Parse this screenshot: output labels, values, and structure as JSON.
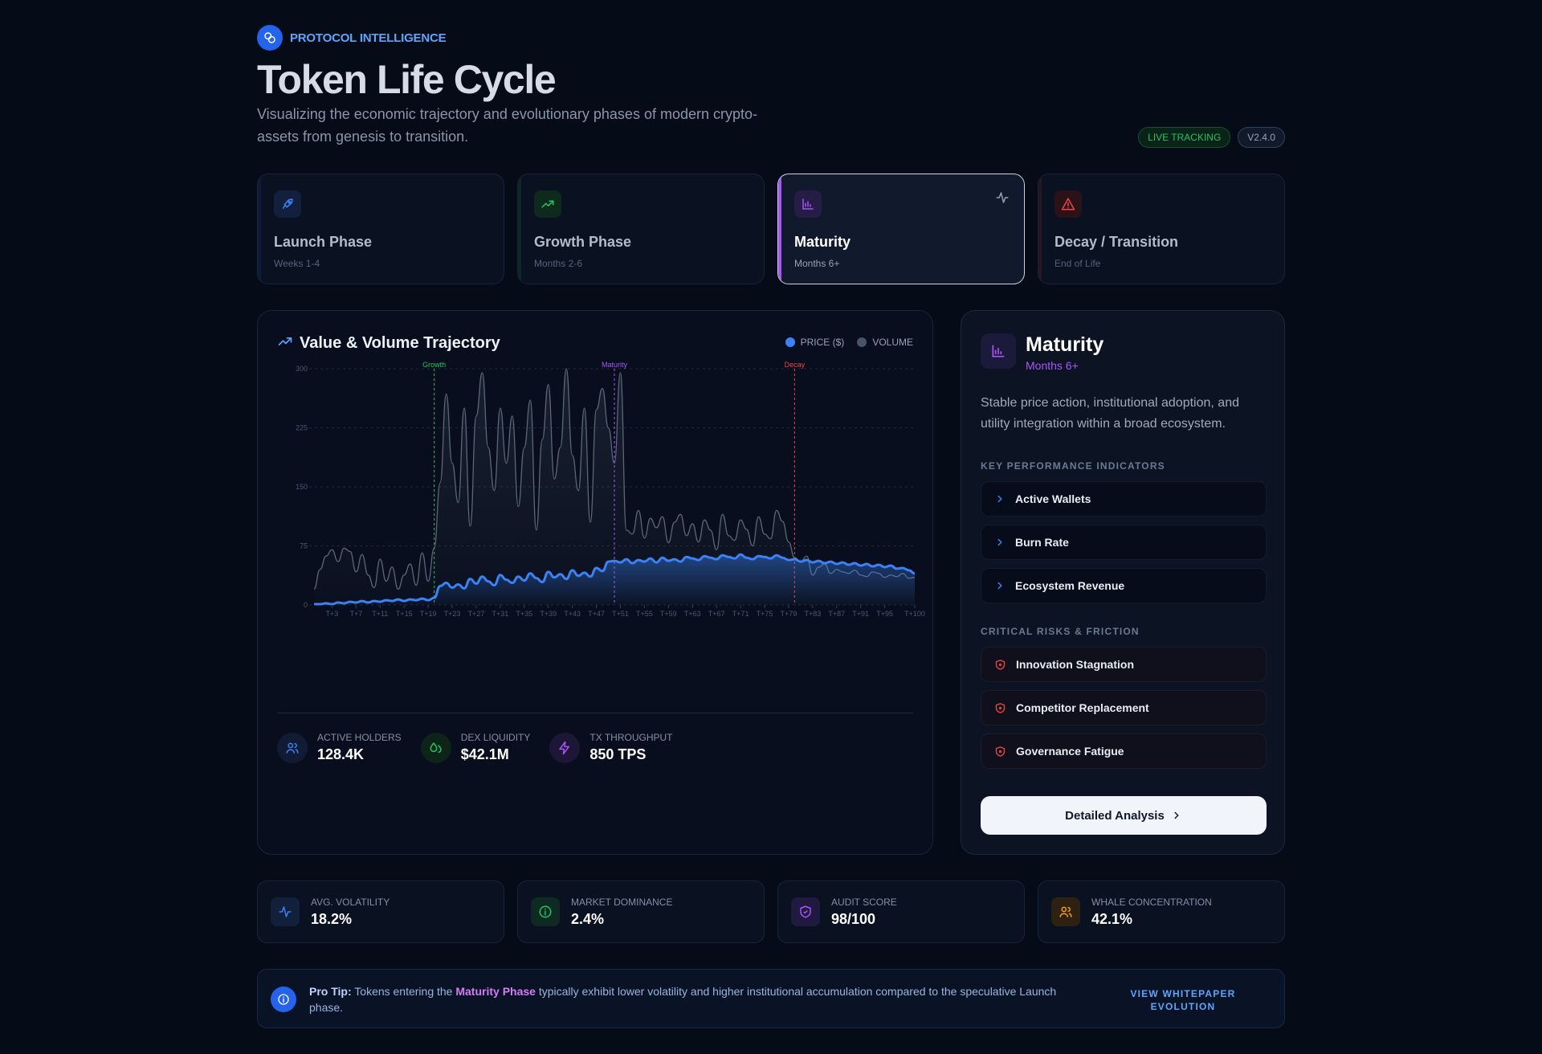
{
  "header": {
    "brand": "PROTOCOL INTELLIGENCE",
    "title": "Token Life Cycle",
    "subtitle": "Visualizing the economic trajectory and evolutionary phases of modern crypto-assets from genesis to transition.",
    "badge_live": "LIVE TRACKING",
    "badge_version": "V2.4.0"
  },
  "phases": [
    {
      "name": "Launch Phase",
      "sub": "Weeks 1-4",
      "color": "#3b82f6",
      "icon": "rocket-icon",
      "active": false
    },
    {
      "name": "Growth Phase",
      "sub": "Months 2-6",
      "color": "#22c55e",
      "icon": "trending-up-icon",
      "active": false
    },
    {
      "name": "Maturity",
      "sub": "Months 6+",
      "color": "#a855f7",
      "icon": "bar-chart-icon",
      "active": true
    },
    {
      "name": "Decay / Transition",
      "sub": "End of Life",
      "color": "#ef4444",
      "icon": "alert-triangle-icon",
      "active": false
    }
  ],
  "chart": {
    "title": "Value & Volume Trajectory",
    "legend_price": "PRICE ($)",
    "legend_volume": "VOLUME",
    "price_color": "#3b82f6",
    "volume_color": "#475569"
  },
  "stats": [
    {
      "label": "ACTIVE HOLDERS",
      "value": "128.4K"
    },
    {
      "label": "DEX LIQUIDITY",
      "value": "$42.1M"
    },
    {
      "label": "TX THROUGHPUT",
      "value": "850 TPS"
    }
  ],
  "panel": {
    "title": "Maturity",
    "sub": "Months 6+",
    "description": "Stable price action, institutional adoption, and utility integration within a broad ecosystem.",
    "kpi_label": "KEY PERFORMANCE INDICATORS",
    "kpis": [
      "Active Wallets",
      "Burn Rate",
      "Ecosystem Revenue"
    ],
    "risk_label": "CRITICAL RISKS & FRICTION",
    "risks": [
      "Innovation Stagnation",
      "Competitor Replacement",
      "Governance Fatigue"
    ],
    "cta": "Detailed Analysis"
  },
  "metrics": [
    {
      "label": "AVG. VOLATILITY",
      "value": "18.2%",
      "icon": "activity-icon"
    },
    {
      "label": "MARKET DOMINANCE",
      "value": "2.4%",
      "icon": "info-circle-icon"
    },
    {
      "label": "AUDIT SCORE",
      "value": "98/100",
      "icon": "shield-icon"
    },
    {
      "label": "WHALE CONCENTRATION",
      "value": "42.1%",
      "icon": "users-icon"
    }
  ],
  "tip": {
    "prefix": "Pro Tip:",
    "text1": " Tokens entering the ",
    "highlight": "Maturity Phase",
    "text2": " typically exhibit lower volatility and higher institutional accumulation compared to the speculative Launch phase.",
    "link": "VIEW WHITEPAPER EVOLUTION"
  },
  "chart_data": {
    "type": "area",
    "x": [
      "T+0",
      "T+1",
      "T+2",
      "T+3",
      "T+4",
      "T+5",
      "T+6",
      "T+7",
      "T+8",
      "T+9",
      "T+10",
      "T+11",
      "T+12",
      "T+13",
      "T+14",
      "T+15",
      "T+16",
      "T+17",
      "T+18",
      "T+19",
      "T+20",
      "T+21",
      "T+22",
      "T+23",
      "T+24",
      "T+25",
      "T+26",
      "T+27",
      "T+28",
      "T+29",
      "T+30",
      "T+31",
      "T+32",
      "T+33",
      "T+34",
      "T+35",
      "T+36",
      "T+37",
      "T+38",
      "T+39",
      "T+40",
      "T+41",
      "T+42",
      "T+43",
      "T+44",
      "T+45",
      "T+46",
      "T+47",
      "T+48",
      "T+49",
      "T+50",
      "T+51",
      "T+52",
      "T+53",
      "T+54",
      "T+55",
      "T+56",
      "T+57",
      "T+58",
      "T+59",
      "T+60",
      "T+61",
      "T+62",
      "T+63",
      "T+64",
      "T+65",
      "T+66",
      "T+67",
      "T+68",
      "T+69",
      "T+70",
      "T+71",
      "T+72",
      "T+73",
      "T+74",
      "T+75",
      "T+76",
      "T+77",
      "T+78",
      "T+79",
      "T+80",
      "T+81",
      "T+82",
      "T+83",
      "T+84",
      "T+85",
      "T+86",
      "T+87",
      "T+88",
      "T+89",
      "T+90",
      "T+91",
      "T+92",
      "T+93",
      "T+94",
      "T+95",
      "T+96",
      "T+97",
      "T+98",
      "T+99",
      "T+100"
    ],
    "x_tick_labels": [
      "T+3",
      "T+7",
      "T+11",
      "T+15",
      "T+19",
      "T+23",
      "T+27",
      "T+31",
      "T+35",
      "T+39",
      "T+43",
      "T+47",
      "T+51",
      "T+55",
      "T+59",
      "T+63",
      "T+67",
      "T+71",
      "T+75",
      "T+79",
      "T+83",
      "T+87",
      "T+91",
      "T+95",
      "T+100"
    ],
    "y_ticks": [
      0,
      75,
      150,
      225,
      300
    ],
    "ylim": [
      0,
      300
    ],
    "series": [
      {
        "name": "PRICE ($)",
        "values": [
          1,
          1,
          2,
          1,
          3,
          2,
          4,
          3,
          5,
          3,
          5,
          4,
          6,
          5,
          7,
          5,
          7,
          6,
          8,
          6,
          9,
          24,
          28,
          22,
          26,
          21,
          33,
          27,
          36,
          30,
          25,
          38,
          32,
          28,
          36,
          31,
          40,
          34,
          29,
          42,
          35,
          39,
          33,
          44,
          37,
          41,
          36,
          47,
          43,
          55,
          56,
          54,
          58,
          53,
          57,
          55,
          59,
          54,
          60,
          56,
          58,
          55,
          61,
          59,
          57,
          62,
          60,
          58,
          63,
          61,
          59,
          64,
          60,
          58,
          62,
          61,
          59,
          63,
          60,
          57,
          58,
          55,
          57,
          54,
          56,
          53,
          55,
          52,
          54,
          51,
          53,
          50,
          52,
          49,
          51,
          48,
          50,
          46,
          47,
          44,
          40
        ]
      },
      {
        "name": "VOLUME",
        "values": [
          20,
          45,
          62,
          70,
          55,
          72,
          68,
          42,
          64,
          38,
          22,
          58,
          30,
          48,
          20,
          38,
          52,
          25,
          66,
          30,
          72,
          155,
          268,
          180,
          130,
          250,
          100,
          240,
          295,
          200,
          145,
          250,
          180,
          240,
          125,
          200,
          260,
          95,
          210,
          280,
          160,
          200,
          300,
          190,
          145,
          250,
          105,
          248,
          275,
          225,
          180,
          295,
          95,
          90,
          120,
          85,
          110,
          98,
          112,
          79,
          105,
          115,
          88,
          103,
          80,
          108,
          95,
          70,
          115,
          88,
          82,
          108,
          96,
          75,
          112,
          90,
          84,
          120,
          106,
          80,
          60,
          55,
          62,
          38,
          48,
          52,
          40,
          45,
          42,
          40,
          44,
          38,
          36,
          42,
          40,
          35,
          38,
          36,
          40,
          34,
          35
        ]
      }
    ],
    "phase_markers": [
      {
        "label": "Growth",
        "x": "T+20",
        "color": "#22c55e"
      },
      {
        "label": "Maturity",
        "x": "T+50",
        "color": "#a855f7"
      },
      {
        "label": "Decay",
        "x": "T+80",
        "color": "#ef4444"
      }
    ]
  }
}
